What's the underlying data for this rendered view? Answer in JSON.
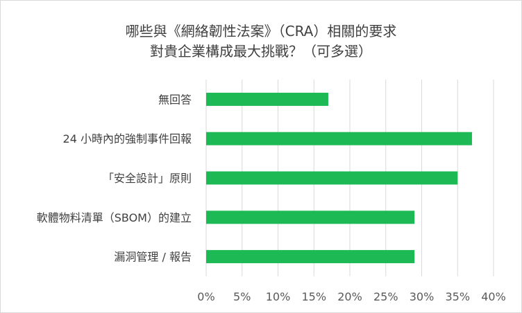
{
  "chart_data": {
    "type": "bar",
    "orientation": "horizontal",
    "title_lines": [
      "哪些與《網絡韌性法案》（CRA）相關的要求",
      "對貴企業構成最大挑戰？（可多選）"
    ],
    "categories": [
      "無回答",
      "24 小時內的強制事件回報",
      "「安全設計」原則",
      "軟體物料清單（SBOM）的建立",
      "漏洞管理 / 報告"
    ],
    "values": [
      0.17,
      0.37,
      0.35,
      0.29,
      0.29
    ],
    "xlim": [
      0,
      0.4
    ],
    "xticks": [
      0,
      0.05,
      0.1,
      0.15,
      0.2,
      0.25,
      0.3,
      0.35,
      0.4
    ],
    "xtick_labels": [
      "0%",
      "5%",
      "10%",
      "15%",
      "20%",
      "25%",
      "30%",
      "35%",
      "40%"
    ],
    "grid": "vertical",
    "legend": "none",
    "bar_color": "#1db954",
    "grid_color": "#d9d9d9"
  }
}
